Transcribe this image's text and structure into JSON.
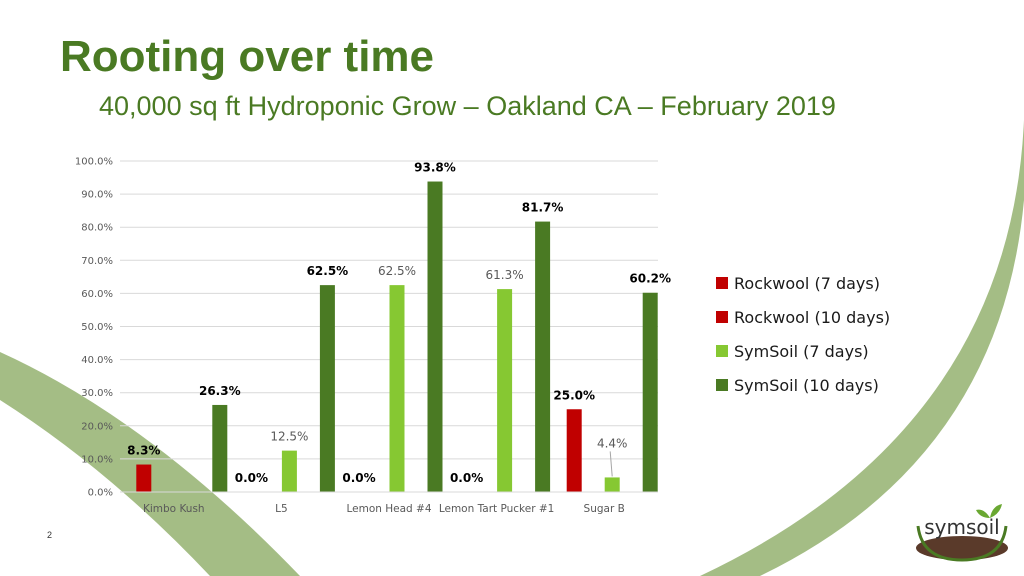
{
  "slide": {
    "title": "Rooting over time",
    "subtitle": "40,000 sq ft Hydroponic Grow – Oakland CA – February 2019",
    "page_number": "2",
    "logo_text": "symsoil"
  },
  "colors": {
    "accent": "#4a7a23",
    "decor_arc": "#a4bd85",
    "rockwool": "#c00000",
    "symsoil_7": "#86c832",
    "symsoil_10": "#4a7a23"
  },
  "chart_data": {
    "type": "bar",
    "categories": [
      "Kimbo Kush",
      "L5",
      "Lemon Head #4",
      "Lemon Tart Pucker #1",
      "Sugar B"
    ],
    "ylim": [
      0,
      100
    ],
    "yticks": [
      "0.0%",
      "10.0%",
      "20.0%",
      "30.0%",
      "40.0%",
      "50.0%",
      "60.0%",
      "70.0%",
      "80.0%",
      "90.0%",
      "100.0%"
    ],
    "grid": true,
    "legend_position": "right",
    "series": [
      {
        "name": "Rockwool (7 days)",
        "color": "#c00000",
        "values": [
          null,
          null,
          null,
          null,
          null
        ],
        "labels": [
          "",
          "",
          "",
          "",
          ""
        ]
      },
      {
        "name": "Rockwool (10 days)",
        "color": "#c00000",
        "values": [
          8.3,
          0.0,
          0.0,
          0.0,
          25.0
        ],
        "labels": [
          "8.3%",
          "0.0%",
          "0.0%",
          "0.0%",
          "25.0%"
        ]
      },
      {
        "name": "SymSoil (7 days)",
        "color": "#86c832",
        "values": [
          null,
          12.5,
          62.5,
          61.3,
          4.4
        ],
        "labels": [
          "",
          "12.5%",
          "62.5%",
          "61.3%",
          "4.4%"
        ]
      },
      {
        "name": "SymSoil (10 days)",
        "color": "#4a7a23",
        "values": [
          26.3,
          62.5,
          93.8,
          81.7,
          60.2
        ],
        "labels": [
          "26.3%",
          "62.5%",
          "93.8%",
          "81.7%",
          "60.2%"
        ]
      }
    ]
  }
}
